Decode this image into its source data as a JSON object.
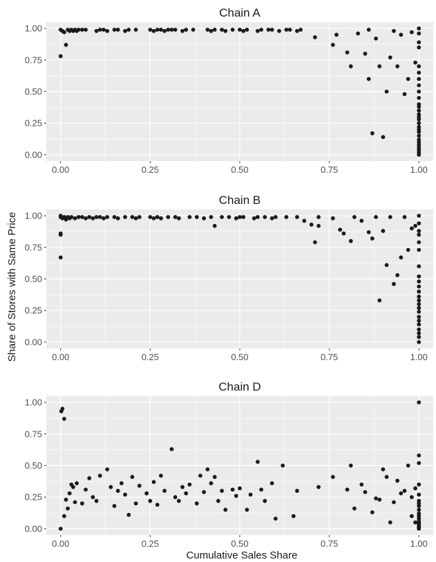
{
  "figure": {
    "ylabel": "Share of Stores with Same Price",
    "xlabel": "Cumulative Sales Share"
  },
  "chart_data": [
    {
      "type": "scatter",
      "title": "Chain A",
      "xlabel": "Cumulative Sales Share",
      "ylabel": "Share of Stores with Same Price",
      "xlim": [
        -0.04,
        1.04
      ],
      "ylim": [
        -0.05,
        1.05
      ],
      "xticks": [
        "0.00",
        "0.25",
        "0.50",
        "0.75",
        "1.00"
      ],
      "yticks": [
        "0.00",
        "0.25",
        "0.50",
        "0.75",
        "1.00"
      ],
      "grid": true,
      "x": [
        0,
        0,
        0.005,
        0.01,
        0.015,
        0.02,
        0.025,
        0.03,
        0.035,
        0.04,
        0.045,
        0.05,
        0.06,
        0.07,
        0.1,
        0.11,
        0.12,
        0.13,
        0.15,
        0.16,
        0.18,
        0.19,
        0.21,
        0.25,
        0.26,
        0.27,
        0.28,
        0.29,
        0.3,
        0.31,
        0.32,
        0.34,
        0.35,
        0.37,
        0.41,
        0.42,
        0.43,
        0.45,
        0.46,
        0.48,
        0.5,
        0.51,
        0.52,
        0.55,
        0.56,
        0.58,
        0.59,
        0.61,
        0.63,
        0.64,
        0.66,
        0.67,
        0.71,
        0.76,
        0.77,
        0.8,
        0.81,
        0.83,
        0.85,
        0.86,
        0.86,
        0.87,
        0.88,
        0.89,
        0.9,
        0.91,
        0.92,
        0.93,
        0.94,
        0.95,
        0.96,
        0.97,
        0.98,
        0.99,
        1,
        1,
        1,
        1,
        1,
        1,
        1,
        1,
        1,
        1,
        1,
        1,
        1,
        1,
        1,
        1,
        1,
        1,
        1,
        1,
        1,
        1,
        1,
        1,
        1,
        1,
        1,
        1
      ],
      "y": [
        0.78,
        0.99,
        0.98,
        0.97,
        0.87,
        0.99,
        0.98,
        0.99,
        0.98,
        0.99,
        0.98,
        0.99,
        0.99,
        0.99,
        0.98,
        0.99,
        0.99,
        0.98,
        0.99,
        0.99,
        0.98,
        0.99,
        0.99,
        0.99,
        0.98,
        0.99,
        0.99,
        0.98,
        0.99,
        0.99,
        0.99,
        0.98,
        0.99,
        0.99,
        0.99,
        0.98,
        0.99,
        0.99,
        0.98,
        0.99,
        0.99,
        0.98,
        0.99,
        0.98,
        0.99,
        0.99,
        0.99,
        0.98,
        0.99,
        0.99,
        0.98,
        0.99,
        0.93,
        0.87,
        0.95,
        0.81,
        0.7,
        0.96,
        0.8,
        0.99,
        0.6,
        0.17,
        0.92,
        0.7,
        0.14,
        0.5,
        0.77,
        0.98,
        0.7,
        0.95,
        0.48,
        0.6,
        0.97,
        0.73,
        1,
        0.96,
        0.89,
        0.85,
        0.7,
        0.6,
        0.5,
        0.45,
        0.4,
        0.38,
        0.35,
        0.32,
        0.3,
        0.28,
        0.25,
        0.22,
        0.2,
        0.18,
        0.15,
        0.12,
        0.1,
        0.08,
        0.06,
        0.04,
        0.02,
        0,
        0.55,
        0.65
      ]
    },
    {
      "type": "scatter",
      "title": "Chain B",
      "xlabel": "Cumulative Sales Share",
      "ylabel": "Share of Stores with Same Price",
      "xlim": [
        -0.04,
        1.04
      ],
      "ylim": [
        -0.05,
        1.05
      ],
      "xticks": [
        "0.00",
        "0.25",
        "0.50",
        "0.75",
        "1.00"
      ],
      "yticks": [
        "0.00",
        "0.25",
        "0.50",
        "0.75",
        "1.00"
      ],
      "grid": true,
      "x": [
        0,
        0,
        0,
        0,
        0,
        0.005,
        0.01,
        0.015,
        0.02,
        0.025,
        0.03,
        0.04,
        0.05,
        0.06,
        0.07,
        0.08,
        0.09,
        0.1,
        0.11,
        0.12,
        0.13,
        0.15,
        0.16,
        0.18,
        0.2,
        0.21,
        0.22,
        0.25,
        0.26,
        0.27,
        0.28,
        0.3,
        0.32,
        0.33,
        0.36,
        0.38,
        0.4,
        0.42,
        0.43,
        0.45,
        0.47,
        0.49,
        0.5,
        0.51,
        0.54,
        0.55,
        0.57,
        0.59,
        0.6,
        0.63,
        0.66,
        0.68,
        0.7,
        0.71,
        0.72,
        0.72,
        0.76,
        0.78,
        0.79,
        0.81,
        0.82,
        0.84,
        0.86,
        0.87,
        0.88,
        0.89,
        0.9,
        0.91,
        0.92,
        0.93,
        0.94,
        0.95,
        0.96,
        0.97,
        0.98,
        0.99,
        1,
        1,
        1,
        1,
        1,
        1,
        1,
        1,
        1,
        1,
        1,
        1,
        1,
        1,
        1,
        1,
        1,
        1,
        1,
        1,
        1,
        1,
        1
      ],
      "y": [
        0.67,
        0.85,
        0.86,
        0.99,
        1,
        0.98,
        0.99,
        0.97,
        0.99,
        0.98,
        0.99,
        0.98,
        0.99,
        0.99,
        0.98,
        0.99,
        0.98,
        0.99,
        0.99,
        0.98,
        0.99,
        0.99,
        0.98,
        0.99,
        0.99,
        0.98,
        0.99,
        0.99,
        0.98,
        0.99,
        0.98,
        0.99,
        0.99,
        0.98,
        0.99,
        0.99,
        0.98,
        0.99,
        0.92,
        0.99,
        0.99,
        0.98,
        0.99,
        0.99,
        0.98,
        0.99,
        0.99,
        0.98,
        0.99,
        0.99,
        0.99,
        0.96,
        0.93,
        0.79,
        0.99,
        0.92,
        0.98,
        0.89,
        0.86,
        0.8,
        0.99,
        0.96,
        0.87,
        0.82,
        0.99,
        0.33,
        0.88,
        0.61,
        0.99,
        0.46,
        0.53,
        0.67,
        0.99,
        0.73,
        0.9,
        0.92,
        1,
        0.94,
        0.88,
        0.85,
        0.79,
        0.73,
        0.6,
        0.52,
        0.48,
        0.44,
        0.4,
        0.36,
        0.33,
        0.3,
        0.27,
        0.24,
        0.2,
        0.17,
        0.14,
        0.1,
        0.07,
        0.04,
        0
      ]
    },
    {
      "type": "scatter",
      "title": "Chain D",
      "xlabel": "Cumulative Sales Share",
      "ylabel": "Share of Stores with Same Price",
      "xlim": [
        -0.04,
        1.04
      ],
      "ylim": [
        -0.05,
        1.05
      ],
      "xticks": [
        "0.00",
        "0.25",
        "0.50",
        "0.75",
        "1.00"
      ],
      "yticks": [
        "0.00",
        "0.25",
        "0.50",
        "0.75",
        "1.00"
      ],
      "grid": true,
      "x": [
        0,
        0.002,
        0.005,
        0.01,
        0.01,
        0.015,
        0.02,
        0.025,
        0.03,
        0.035,
        0.04,
        0.045,
        0.06,
        0.07,
        0.08,
        0.09,
        0.1,
        0.11,
        0.13,
        0.14,
        0.15,
        0.16,
        0.17,
        0.18,
        0.19,
        0.2,
        0.21,
        0.22,
        0.24,
        0.25,
        0.26,
        0.27,
        0.28,
        0.29,
        0.31,
        0.32,
        0.33,
        0.34,
        0.35,
        0.36,
        0.38,
        0.39,
        0.4,
        0.41,
        0.42,
        0.43,
        0.44,
        0.45,
        0.46,
        0.48,
        0.49,
        0.5,
        0.52,
        0.53,
        0.55,
        0.56,
        0.57,
        0.59,
        0.6,
        0.62,
        0.65,
        0.66,
        0.72,
        0.76,
        0.8,
        0.81,
        0.82,
        0.84,
        0.85,
        0.87,
        0.88,
        0.89,
        0.9,
        0.91,
        0.92,
        0.93,
        0.94,
        0.95,
        0.96,
        0.97,
        0.98,
        0.98,
        0.99,
        0.99,
        1,
        1,
        1,
        1,
        1,
        1,
        1,
        1,
        1,
        1,
        1,
        1,
        1,
        1,
        1,
        1,
        1,
        1,
        1
      ],
      "y": [
        0,
        0.93,
        0.95,
        0.87,
        0.1,
        0.23,
        0.16,
        0.28,
        0.35,
        0.33,
        0.21,
        0.36,
        0.2,
        0.31,
        0.4,
        0.25,
        0.22,
        0.42,
        0.47,
        0.33,
        0.18,
        0.3,
        0.36,
        0.27,
        0.11,
        0.41,
        0.2,
        0.34,
        0.28,
        0.22,
        0.37,
        0.19,
        0.42,
        0.3,
        0.63,
        0.25,
        0.22,
        0.33,
        0.28,
        0.35,
        0.2,
        0.42,
        0.29,
        0.47,
        0.36,
        0.41,
        0.22,
        0.3,
        0.15,
        0.31,
        0.26,
        0.32,
        0.15,
        0.27,
        0.53,
        0.31,
        0.22,
        0.36,
        0.08,
        0.5,
        0.1,
        0.3,
        0.33,
        0.41,
        0.31,
        0.5,
        0.16,
        0.35,
        0.29,
        0.13,
        0.24,
        0.23,
        0.47,
        0.41,
        0.05,
        0.21,
        0.38,
        0.28,
        0.3,
        0.5,
        0.1,
        0.25,
        0.05,
        0.32,
        1,
        0.58,
        0.52,
        0.35,
        0.27,
        0.22,
        0.18,
        0.15,
        0.12,
        0.1,
        0.08,
        0.06,
        0.05,
        0.04,
        0.03,
        0.02,
        0.01,
        0,
        0.2
      ]
    }
  ]
}
